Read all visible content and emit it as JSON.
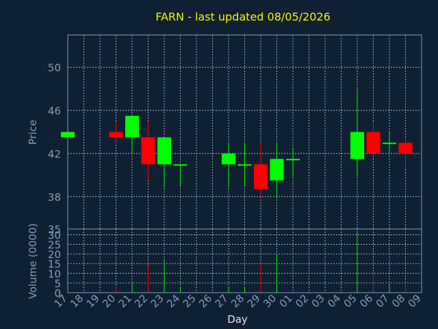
{
  "chart_data": {
    "type": "candlestick",
    "title": "FARN - last updated 08/05/2026",
    "xlabel": "Day",
    "price_panel": {
      "ylabel": "Price",
      "ylim": [
        35,
        53
      ],
      "yticks": [
        50,
        46,
        42,
        38
      ],
      "grid": true
    },
    "volume_panel": {
      "ylabel": "Volume (0000)",
      "ylim": [
        0,
        33
      ],
      "yticks": [
        35,
        30,
        25,
        20,
        15,
        10,
        5,
        0
      ],
      "grid": true
    },
    "x_ticks": [
      "17",
      "18",
      "19",
      "20",
      "21",
      "22",
      "23",
      "24",
      "25",
      "26",
      "27",
      "28",
      "29",
      "30",
      "01",
      "02",
      "03",
      "04",
      "05",
      "06",
      "07",
      "08",
      "09"
    ],
    "colors": {
      "up": "#00ff00",
      "down": "#ff0000",
      "title": "#f5f500",
      "background": "#0f2033"
    },
    "candles": [
      {
        "day": "17",
        "open": 43.5,
        "high": 44.0,
        "low": 43.5,
        "close": 44.0,
        "volume": 0
      },
      {
        "day": "20",
        "open": 44.0,
        "high": 45.0,
        "low": 43.0,
        "close": 43.5,
        "volume": 3
      },
      {
        "day": "21",
        "open": 43.5,
        "high": 45.5,
        "low": 42.0,
        "close": 45.5,
        "volume": 5
      },
      {
        "day": "22",
        "open": 43.5,
        "high": 45.0,
        "low": 39.5,
        "close": 41.0,
        "volume": 14
      },
      {
        "day": "23",
        "open": 41.0,
        "high": 43.5,
        "low": 38.8,
        "close": 43.5,
        "volume": 17
      },
      {
        "day": "24",
        "open": 41.0,
        "high": 41.0,
        "low": 39.0,
        "close": 41.0,
        "volume": 3
      },
      {
        "day": "27",
        "open": 41.0,
        "high": 43.0,
        "low": 38.8,
        "close": 42.0,
        "volume": 3
      },
      {
        "day": "28",
        "open": 41.0,
        "high": 43.0,
        "low": 39.0,
        "close": 41.0,
        "volume": 3
      },
      {
        "day": "29",
        "open": 41.0,
        "high": 43.0,
        "low": 38.0,
        "close": 38.7,
        "volume": 15
      },
      {
        "day": "30",
        "open": 39.5,
        "high": 43.0,
        "low": 38.0,
        "close": 41.5,
        "volume": 20
      },
      {
        "day": "01",
        "open": 41.5,
        "high": 42.5,
        "low": 39.8,
        "close": 41.5,
        "volume": 0
      },
      {
        "day": "05",
        "open": 41.5,
        "high": 48.0,
        "low": 39.8,
        "close": 44.0,
        "volume": 32
      },
      {
        "day": "06",
        "open": 44.0,
        "high": 45.0,
        "low": 42.0,
        "close": 42.0,
        "volume": 10
      },
      {
        "day": "07",
        "open": 43.0,
        "high": 44.0,
        "low": 42.0,
        "close": 43.0,
        "volume": 4
      },
      {
        "day": "08",
        "open": 43.0,
        "high": 43.3,
        "low": 40.5,
        "close": 42.0,
        "volume": 5
      }
    ]
  }
}
